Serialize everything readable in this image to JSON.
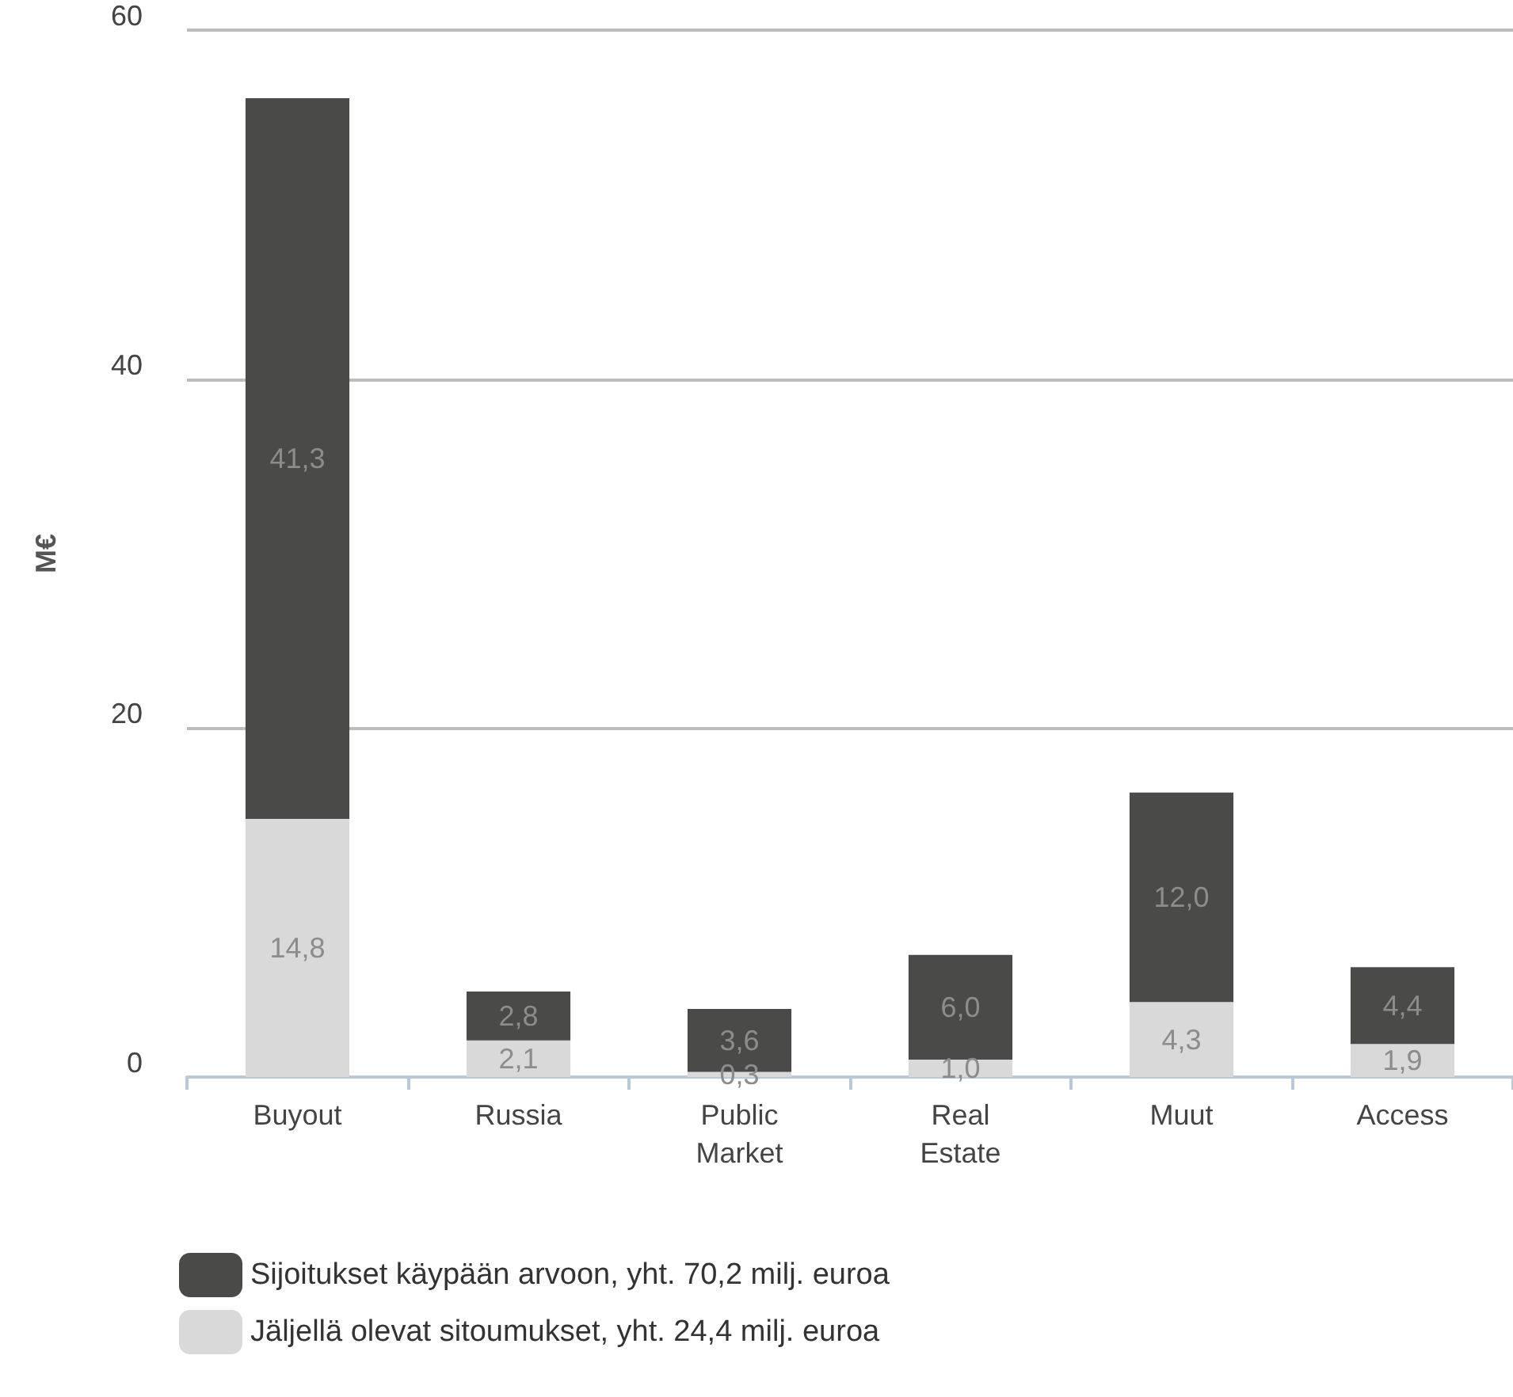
{
  "chart_data": {
    "type": "bar",
    "ylabel": "M€",
    "categories": [
      "Buyout",
      "Russia",
      "Public\nMarket",
      "Real\nEstate",
      "Muut",
      "Access"
    ],
    "stacked": true,
    "ylim": [
      0,
      60
    ],
    "yticks": [
      0,
      20,
      40,
      60
    ],
    "grid": "y",
    "legend": "bottom left",
    "series": [
      {
        "name": "Jäljellä olevat sitoumukset, yht. 24,4 milj. euroa",
        "color": "#d9d9d9",
        "values": [
          14.8,
          2.1,
          0.3,
          1.0,
          4.3,
          1.9
        ],
        "value_labels": [
          "14,8",
          "2,1",
          "0,3",
          "1,0",
          "4,3",
          "1,9"
        ]
      },
      {
        "name": "Sijoitukset käypään arvoon, yht. 70,2 milj. euroa",
        "color": "#4a4a48",
        "values": [
          41.3,
          2.8,
          3.6,
          6.0,
          12.0,
          4.4
        ],
        "value_labels": [
          "41,3",
          "2,8",
          "3,6",
          "6,0",
          "12,0",
          "4,4"
        ]
      }
    ]
  }
}
